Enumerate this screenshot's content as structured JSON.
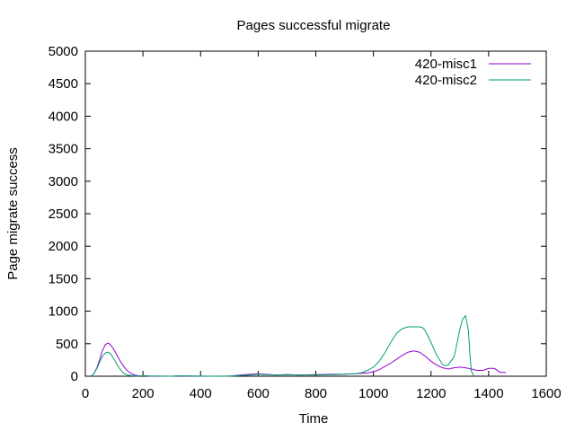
{
  "chart_data": {
    "type": "line",
    "title": "Pages successful migrate",
    "xlabel": "Time",
    "ylabel": "Page migrate success",
    "xlim": [
      0,
      1600
    ],
    "ylim": [
      0,
      5000
    ],
    "xticks": [
      0,
      200,
      400,
      600,
      800,
      1000,
      1200,
      1400,
      1600
    ],
    "yticks": [
      0,
      500,
      1000,
      1500,
      2000,
      2500,
      3000,
      3500,
      4000,
      4500,
      5000
    ],
    "grid": false,
    "legend_position": "top-right",
    "series": [
      {
        "name": "420-misc1",
        "color": "#9400d3",
        "x": [
          20,
          30,
          40,
          50,
          60,
          70,
          80,
          90,
          100,
          110,
          120,
          130,
          140,
          150,
          160,
          170,
          180,
          190,
          200,
          210,
          220,
          300,
          320,
          440,
          500,
          540,
          580,
          600,
          620,
          660,
          700,
          740,
          800,
          860,
          900,
          940,
          980,
          1000,
          1020,
          1040,
          1060,
          1080,
          1100,
          1120,
          1140,
          1160,
          1180,
          1200,
          1220,
          1240,
          1260,
          1280,
          1300,
          1320,
          1340,
          1360,
          1380,
          1400,
          1420,
          1440,
          1460
        ],
        "y": [
          0,
          40,
          130,
          260,
          400,
          490,
          510,
          470,
          400,
          320,
          240,
          170,
          110,
          70,
          40,
          20,
          10,
          5,
          8,
          8,
          3,
          0,
          6,
          0,
          2,
          20,
          30,
          40,
          30,
          20,
          25,
          20,
          25,
          30,
          30,
          40,
          50,
          70,
          100,
          150,
          200,
          260,
          320,
          370,
          390,
          370,
          310,
          230,
          170,
          130,
          110,
          130,
          140,
          130,
          110,
          90,
          90,
          120,
          120,
          60,
          60
        ]
      },
      {
        "name": "420-misc2",
        "color": "#009e73",
        "x": [
          20,
          30,
          40,
          50,
          60,
          70,
          80,
          90,
          100,
          110,
          120,
          130,
          140,
          150,
          160,
          170,
          180,
          190,
          200,
          220,
          300,
          320,
          440,
          500,
          540,
          580,
          600,
          620,
          660,
          700,
          740,
          800,
          860,
          900,
          940,
          960,
          980,
          1000,
          1020,
          1040,
          1060,
          1080,
          1100,
          1120,
          1140,
          1160,
          1170,
          1180,
          1200,
          1220,
          1240,
          1250,
          1260,
          1280,
          1290,
          1300,
          1310,
          1320,
          1330,
          1335,
          1340,
          1350
        ],
        "y": [
          0,
          40,
          120,
          220,
          310,
          360,
          370,
          330,
          260,
          180,
          110,
          60,
          30,
          15,
          8,
          5,
          3,
          5,
          8,
          3,
          0,
          6,
          0,
          2,
          10,
          20,
          30,
          25,
          20,
          25,
          20,
          20,
          25,
          30,
          40,
          55,
          90,
          140,
          230,
          360,
          520,
          660,
          730,
          760,
          760,
          760,
          750,
          700,
          520,
          320,
          180,
          160,
          175,
          300,
          500,
          720,
          880,
          930,
          700,
          350,
          80,
          0
        ]
      }
    ]
  }
}
